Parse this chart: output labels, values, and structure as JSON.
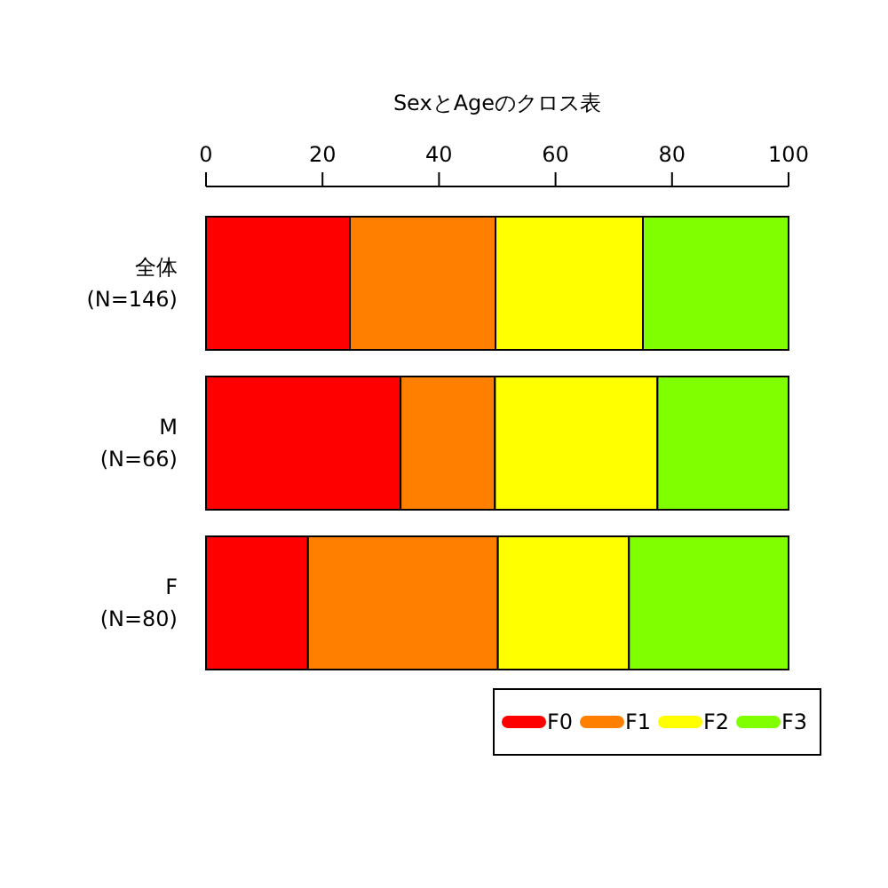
{
  "chart_data": {
    "type": "bar",
    "title": "SexとAgeのクロス表",
    "orientation": "horizontal",
    "stacked": true,
    "categories": [
      "全体\n(N=146)",
      "M\n(N=66)",
      "F\n(N=80)"
    ],
    "series": [
      {
        "name": "F0",
        "color": "#ff0000",
        "values": [
          24.7,
          33.4,
          17.5
        ]
      },
      {
        "name": "F1",
        "color": "#ff8000",
        "values": [
          25.0,
          16.2,
          32.6
        ]
      },
      {
        "name": "F2",
        "color": "#ffff00",
        "values": [
          25.3,
          27.9,
          22.5
        ]
      },
      {
        "name": "F3",
        "color": "#80ff00",
        "values": [
          25.0,
          22.5,
          27.4
        ]
      }
    ],
    "xlim": [
      0,
      100
    ],
    "xticks": [
      0,
      20,
      40,
      60,
      80,
      100
    ],
    "grid": false,
    "legend": "bottom right"
  }
}
